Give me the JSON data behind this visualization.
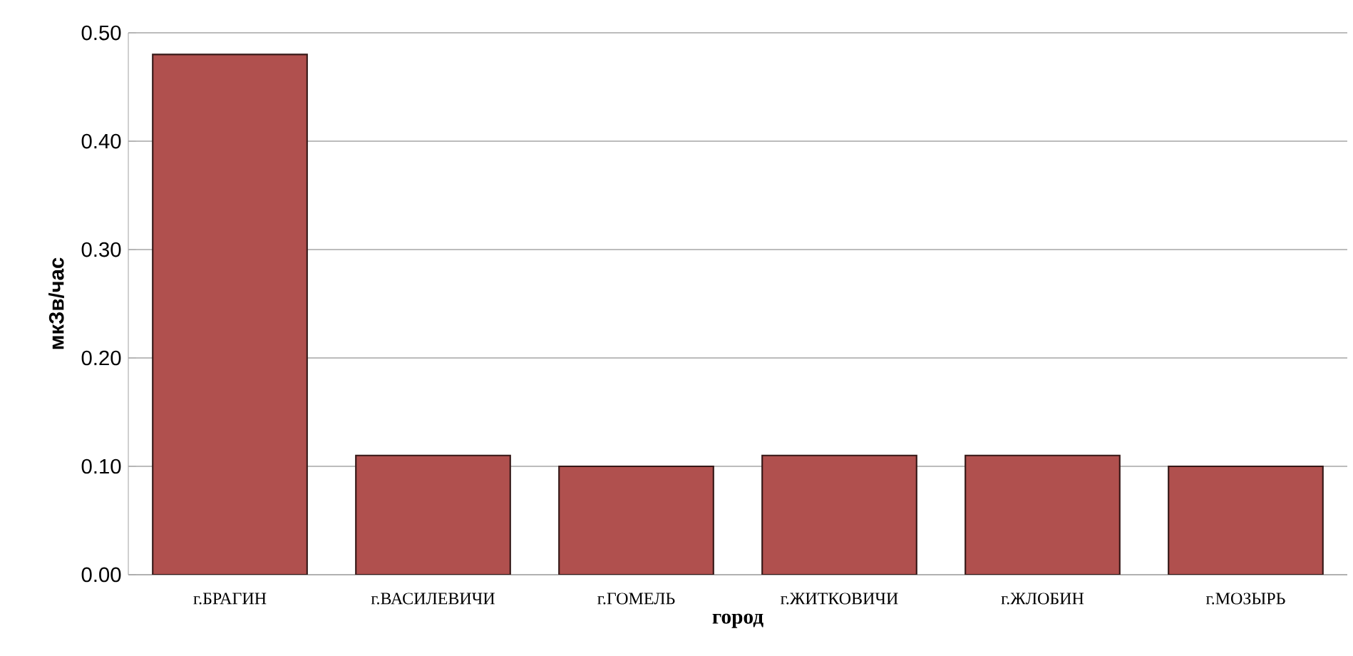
{
  "chart_data": {
    "type": "bar",
    "xlabel": "город",
    "ylabel": "мкЗв/час",
    "categories": [
      "г.БРАГИН",
      "г.ВАСИЛЕВИЧИ",
      "г.ГОМЕЛЬ",
      "г.ЖИТКОВИЧИ",
      "г.ЖЛОБИН",
      "г.МОЗЫРЬ"
    ],
    "values": [
      0.48,
      0.11,
      0.1,
      0.11,
      0.11,
      0.1
    ],
    "color": "#b0504e",
    "ylim": [
      0,
      0.5
    ],
    "yticks": [
      {
        "value": 0,
        "label": "0.00"
      },
      {
        "value": 0.1,
        "label": "0.10"
      },
      {
        "value": 0.2,
        "label": "0.20"
      },
      {
        "value": 0.3,
        "label": "0.30"
      },
      {
        "value": 0.4,
        "label": "0.40"
      },
      {
        "value": 0.5,
        "label": "0.50"
      }
    ],
    "grid": "y"
  }
}
